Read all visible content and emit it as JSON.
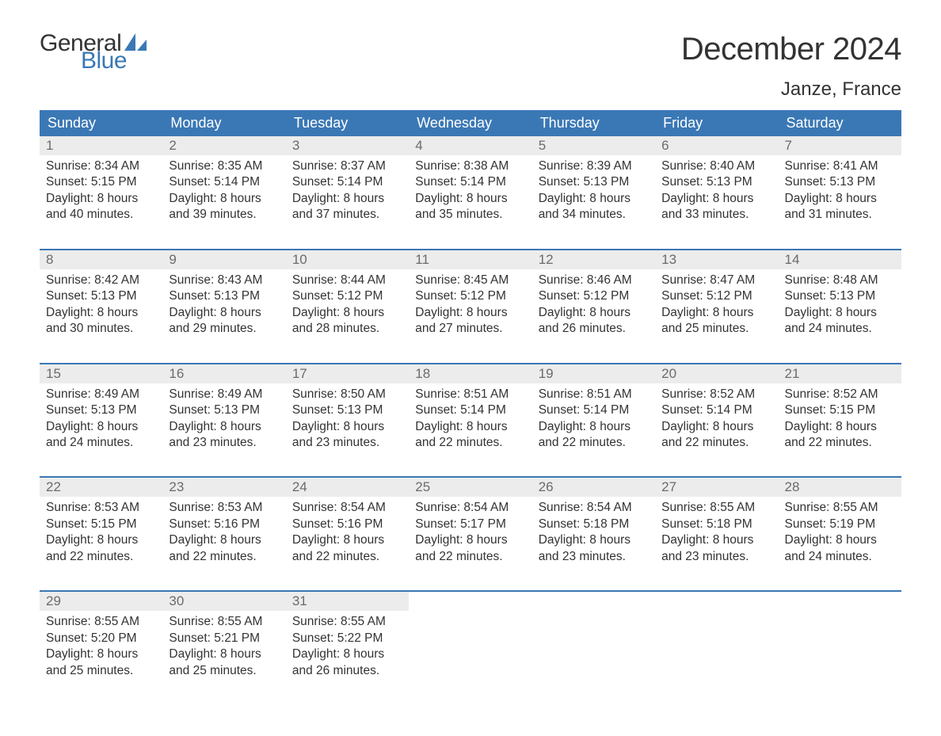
{
  "logo": {
    "text_top": "General",
    "text_bottom": "Blue"
  },
  "title": "December 2024",
  "location": "Janze, France",
  "colors": {
    "accent": "#3a78b5",
    "header_text": "#ffffff",
    "strip_bg": "#ececec",
    "strip_text": "#6b6b6b",
    "body_text": "#333333",
    "background": "#ffffff"
  },
  "weekdays": [
    "Sunday",
    "Monday",
    "Tuesday",
    "Wednesday",
    "Thursday",
    "Friday",
    "Saturday"
  ],
  "calendar": {
    "type": "table",
    "columns": 7,
    "rows": 5,
    "days": [
      {
        "n": 1,
        "sunrise": "8:34 AM",
        "sunset": "5:15 PM",
        "daylight": "8 hours and 40 minutes."
      },
      {
        "n": 2,
        "sunrise": "8:35 AM",
        "sunset": "5:14 PM",
        "daylight": "8 hours and 39 minutes."
      },
      {
        "n": 3,
        "sunrise": "8:37 AM",
        "sunset": "5:14 PM",
        "daylight": "8 hours and 37 minutes."
      },
      {
        "n": 4,
        "sunrise": "8:38 AM",
        "sunset": "5:14 PM",
        "daylight": "8 hours and 35 minutes."
      },
      {
        "n": 5,
        "sunrise": "8:39 AM",
        "sunset": "5:13 PM",
        "daylight": "8 hours and 34 minutes."
      },
      {
        "n": 6,
        "sunrise": "8:40 AM",
        "sunset": "5:13 PM",
        "daylight": "8 hours and 33 minutes."
      },
      {
        "n": 7,
        "sunrise": "8:41 AM",
        "sunset": "5:13 PM",
        "daylight": "8 hours and 31 minutes."
      },
      {
        "n": 8,
        "sunrise": "8:42 AM",
        "sunset": "5:13 PM",
        "daylight": "8 hours and 30 minutes."
      },
      {
        "n": 9,
        "sunrise": "8:43 AM",
        "sunset": "5:13 PM",
        "daylight": "8 hours and 29 minutes."
      },
      {
        "n": 10,
        "sunrise": "8:44 AM",
        "sunset": "5:12 PM",
        "daylight": "8 hours and 28 minutes."
      },
      {
        "n": 11,
        "sunrise": "8:45 AM",
        "sunset": "5:12 PM",
        "daylight": "8 hours and 27 minutes."
      },
      {
        "n": 12,
        "sunrise": "8:46 AM",
        "sunset": "5:12 PM",
        "daylight": "8 hours and 26 minutes."
      },
      {
        "n": 13,
        "sunrise": "8:47 AM",
        "sunset": "5:12 PM",
        "daylight": "8 hours and 25 minutes."
      },
      {
        "n": 14,
        "sunrise": "8:48 AM",
        "sunset": "5:13 PM",
        "daylight": "8 hours and 24 minutes."
      },
      {
        "n": 15,
        "sunrise": "8:49 AM",
        "sunset": "5:13 PM",
        "daylight": "8 hours and 24 minutes."
      },
      {
        "n": 16,
        "sunrise": "8:49 AM",
        "sunset": "5:13 PM",
        "daylight": "8 hours and 23 minutes."
      },
      {
        "n": 17,
        "sunrise": "8:50 AM",
        "sunset": "5:13 PM",
        "daylight": "8 hours and 23 minutes."
      },
      {
        "n": 18,
        "sunrise": "8:51 AM",
        "sunset": "5:14 PM",
        "daylight": "8 hours and 22 minutes."
      },
      {
        "n": 19,
        "sunrise": "8:51 AM",
        "sunset": "5:14 PM",
        "daylight": "8 hours and 22 minutes."
      },
      {
        "n": 20,
        "sunrise": "8:52 AM",
        "sunset": "5:14 PM",
        "daylight": "8 hours and 22 minutes."
      },
      {
        "n": 21,
        "sunrise": "8:52 AM",
        "sunset": "5:15 PM",
        "daylight": "8 hours and 22 minutes."
      },
      {
        "n": 22,
        "sunrise": "8:53 AM",
        "sunset": "5:15 PM",
        "daylight": "8 hours and 22 minutes."
      },
      {
        "n": 23,
        "sunrise": "8:53 AM",
        "sunset": "5:16 PM",
        "daylight": "8 hours and 22 minutes."
      },
      {
        "n": 24,
        "sunrise": "8:54 AM",
        "sunset": "5:16 PM",
        "daylight": "8 hours and 22 minutes."
      },
      {
        "n": 25,
        "sunrise": "8:54 AM",
        "sunset": "5:17 PM",
        "daylight": "8 hours and 22 minutes."
      },
      {
        "n": 26,
        "sunrise": "8:54 AM",
        "sunset": "5:18 PM",
        "daylight": "8 hours and 23 minutes."
      },
      {
        "n": 27,
        "sunrise": "8:55 AM",
        "sunset": "5:18 PM",
        "daylight": "8 hours and 23 minutes."
      },
      {
        "n": 28,
        "sunrise": "8:55 AM",
        "sunset": "5:19 PM",
        "daylight": "8 hours and 24 minutes."
      },
      {
        "n": 29,
        "sunrise": "8:55 AM",
        "sunset": "5:20 PM",
        "daylight": "8 hours and 25 minutes."
      },
      {
        "n": 30,
        "sunrise": "8:55 AM",
        "sunset": "5:21 PM",
        "daylight": "8 hours and 25 minutes."
      },
      {
        "n": 31,
        "sunrise": "8:55 AM",
        "sunset": "5:22 PM",
        "daylight": "8 hours and 26 minutes."
      }
    ],
    "labels": {
      "sunrise_prefix": "Sunrise: ",
      "sunset_prefix": "Sunset: ",
      "daylight_prefix": "Daylight: "
    }
  }
}
